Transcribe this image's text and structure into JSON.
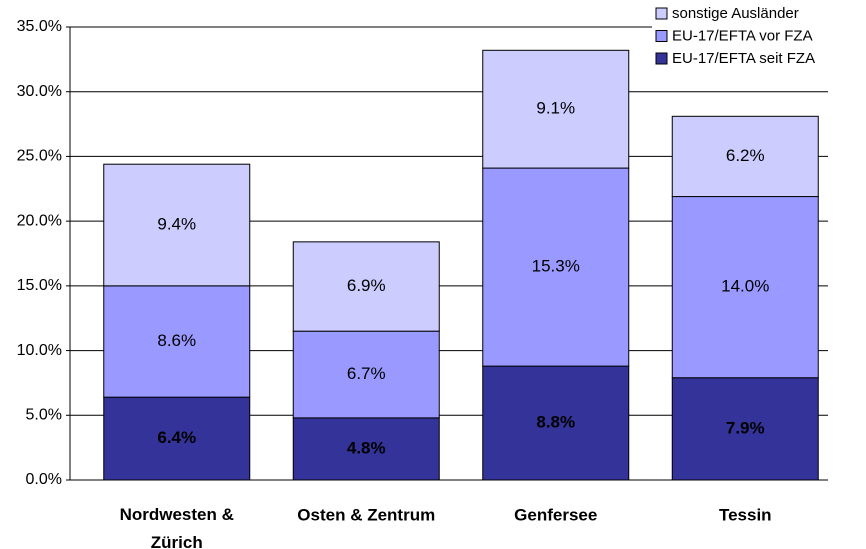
{
  "chart_data": {
    "type": "stacked_bar",
    "categories": [
      "Nordwesten & Zürich",
      "Osten & Zentrum",
      "Genfersee",
      "Tessin"
    ],
    "series": [
      {
        "name": "EU-17/EFTA seit FZA",
        "color": "#333399",
        "values": [
          6.4,
          4.8,
          8.8,
          7.9
        ],
        "value_labels": [
          "6.4%",
          "4.8%",
          "8.8%",
          "7.9%"
        ]
      },
      {
        "name": "EU-17/EFTA vor FZA",
        "color": "#9999ff",
        "values": [
          8.6,
          6.7,
          15.3,
          14.0
        ],
        "value_labels": [
          "8.6%",
          "6.7%",
          "15.3%",
          "14.0%"
        ]
      },
      {
        "name": "sonstige Ausländer",
        "color": "#ccccff",
        "values": [
          9.4,
          6.9,
          9.1,
          6.2
        ],
        "value_labels": [
          "9.4%",
          "6.9%",
          "9.1%",
          "6.2%"
        ]
      }
    ],
    "ylim": [
      0,
      35
    ],
    "yticks": [
      {
        "value": 0,
        "label": "0.0%"
      },
      {
        "value": 5,
        "label": "5.0%"
      },
      {
        "value": 10,
        "label": "10.0%"
      },
      {
        "value": 15,
        "label": "15.0%"
      },
      {
        "value": 20,
        "label": "20.0%"
      },
      {
        "value": 25,
        "label": "25.0%"
      },
      {
        "value": 30,
        "label": "30.0%"
      },
      {
        "value": 35,
        "label": "35.0%"
      }
    ],
    "grid": true,
    "legend": "top-right"
  }
}
